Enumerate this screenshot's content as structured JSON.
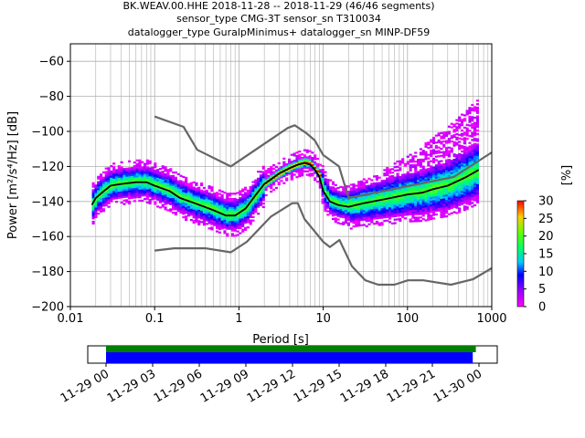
{
  "title_lines": [
    "BK.WEAV.00.HHE   2018-11-28 -- 2018-11-29  (46/46 segments)",
    "sensor_type CMG-3T sensor_sn T310034",
    "datalogger_type GuralpMinimus+ datalogger_sn MINP-DF59"
  ],
  "chart_data": [
    {
      "type": "heatmap",
      "xlabel": "Period [s]",
      "ylabel": "Power [m²/s⁴/Hz] [dB]",
      "xscale": "log",
      "xlim": [
        0.01,
        1000
      ],
      "ylim": [
        -200,
        -50
      ],
      "x_ticks": [
        {
          "value": 0.01,
          "label": "0.01"
        },
        {
          "value": 0.1,
          "label": "0.1"
        },
        {
          "value": 1,
          "label": "1"
        },
        {
          "value": 10,
          "label": "10"
        },
        {
          "value": 100,
          "label": "100"
        },
        {
          "value": 1000,
          "label": "1000"
        }
      ],
      "y_ticks": [
        {
          "value": -60,
          "label": "−60"
        },
        {
          "value": -80,
          "label": "−80"
        },
        {
          "value": -100,
          "label": "−100"
        },
        {
          "value": -120,
          "label": "−120"
        },
        {
          "value": -140,
          "label": "−140"
        },
        {
          "value": -160,
          "label": "−160"
        },
        {
          "value": -180,
          "label": "−180"
        },
        {
          "value": -200,
          "label": "−200"
        }
      ],
      "grid": true,
      "high_noise_model": {
        "x": [
          0.1,
          0.22,
          0.32,
          0.8,
          3.8,
          4.6,
          6.3,
          7.9,
          10,
          15.4,
          20,
          354,
          1000
        ],
        "y": [
          -91.5,
          -97.4,
          -110.5,
          -120,
          -98,
          -96.5,
          -101,
          -105,
          -113.5,
          -120,
          -138,
          -126,
          -112
        ]
      },
      "low_noise_model": {
        "x": [
          0.1,
          0.17,
          0.4,
          0.8,
          1.24,
          2.4,
          4.3,
          5,
          6,
          10,
          12,
          15.6,
          21.9,
          31.6,
          45,
          70,
          101,
          154,
          328,
          600,
          1000
        ],
        "y": [
          -168,
          -166.7,
          -166.7,
          -169,
          -163,
          -148.6,
          -141,
          -141,
          -150,
          -163,
          -166,
          -162,
          -177,
          -185,
          -187.5,
          -187.5,
          -185,
          -185,
          -187.5,
          -184.4,
          -178
        ]
      },
      "mode_line": {
        "x": [
          0.018,
          0.02,
          0.025,
          0.03,
          0.04,
          0.06,
          0.08,
          0.1,
          0.15,
          0.2,
          0.3,
          0.5,
          0.7,
          0.9,
          1.2,
          1.6,
          2,
          3,
          4,
          5,
          6,
          7,
          8,
          9,
          10,
          12,
          15,
          20,
          30,
          50,
          80,
          100,
          150,
          200,
          300,
          500,
          700
        ],
        "y": [
          -142,
          -138,
          -134,
          -131,
          -130,
          -129,
          -129,
          -131,
          -134,
          -138,
          -141,
          -145,
          -148,
          -148,
          -144,
          -136,
          -130,
          -124,
          -121,
          -119,
          -118,
          -119,
          -122,
          -126,
          -134,
          -140,
          -142,
          -143,
          -141,
          -139,
          -137,
          -136,
          -135,
          -133,
          -131,
          -126,
          -122
        ]
      },
      "colorbar": {
        "label": "[%]",
        "range": [
          0,
          30
        ],
        "ticks": [
          0,
          5,
          10,
          15,
          20,
          25,
          30
        ]
      }
    },
    {
      "type": "bar",
      "description_of_axis": "time coverage",
      "x_ticks": [
        "11-29 00",
        "11-29 03",
        "11-29 06",
        "11-29 09",
        "11-29 12",
        "11-29 15",
        "11-29 18",
        "11-29 21",
        "11-30 00"
      ],
      "x_range_hours": [
        0,
        24
      ],
      "series": [
        {
          "color": "#008000",
          "start_hour": 0,
          "end_hour": 23.8
        },
        {
          "color": "#0000ff",
          "start_hour": 0,
          "end_hour": 23.6
        }
      ]
    }
  ],
  "colors": {
    "model_lines": "#666666",
    "mode_line": "#000000"
  }
}
